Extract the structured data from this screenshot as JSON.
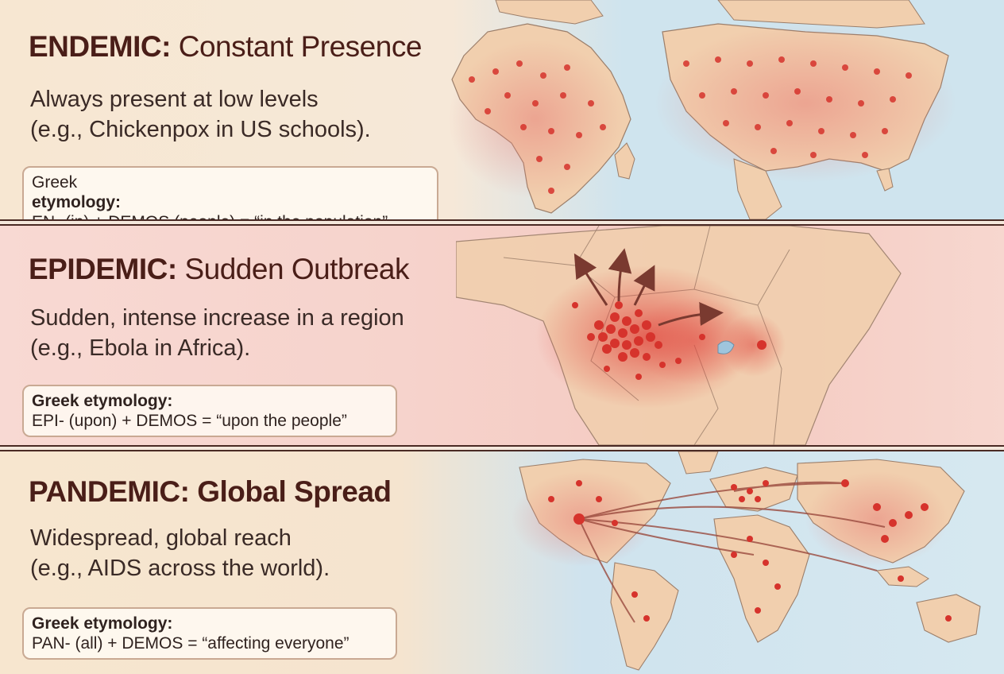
{
  "sections": [
    {
      "term": "ENDEMIC:",
      "subtitle": "Constant Presence",
      "description_line1": "Always present at low levels",
      "description_line2": "(e.g., Chickenpox in US schools).",
      "etymology_label_prefix": "Greek",
      "etymology_label_bold": "etymology:",
      "etymology_text": "EN- (in) + DEMOS (people) = “in the population”",
      "map_icon": "africa-and-north-america-map"
    },
    {
      "term": "EPIDEMIC:",
      "subtitle": "Sudden Outbreak",
      "description_line1": "Sudden, intense increase in a region",
      "description_line2": "(e.g., Ebola in Africa).",
      "etymology_label": "Greek etymology:",
      "etymology_text": "EPI- (upon) + DEMOS = “upon the people”",
      "map_icon": "central-africa-outbreak-map"
    },
    {
      "term": "PANDEMIC:",
      "subtitle": "Global Spread",
      "description_line1": "Widespread, global reach",
      "description_line2": "(e.g., AIDS across the world).",
      "etymology_label": "Greek etymology:",
      "etymology_text": "PAN- (all) + DEMOS = “affecting everyone”",
      "map_icon": "world-map"
    }
  ],
  "colors": {
    "heading": "#4a1e18",
    "text": "#3a2a26",
    "land": "#f1d2b3",
    "ocean": "#cfe4ee",
    "dot": "#d6332c",
    "arrow": "#7a3a30"
  }
}
